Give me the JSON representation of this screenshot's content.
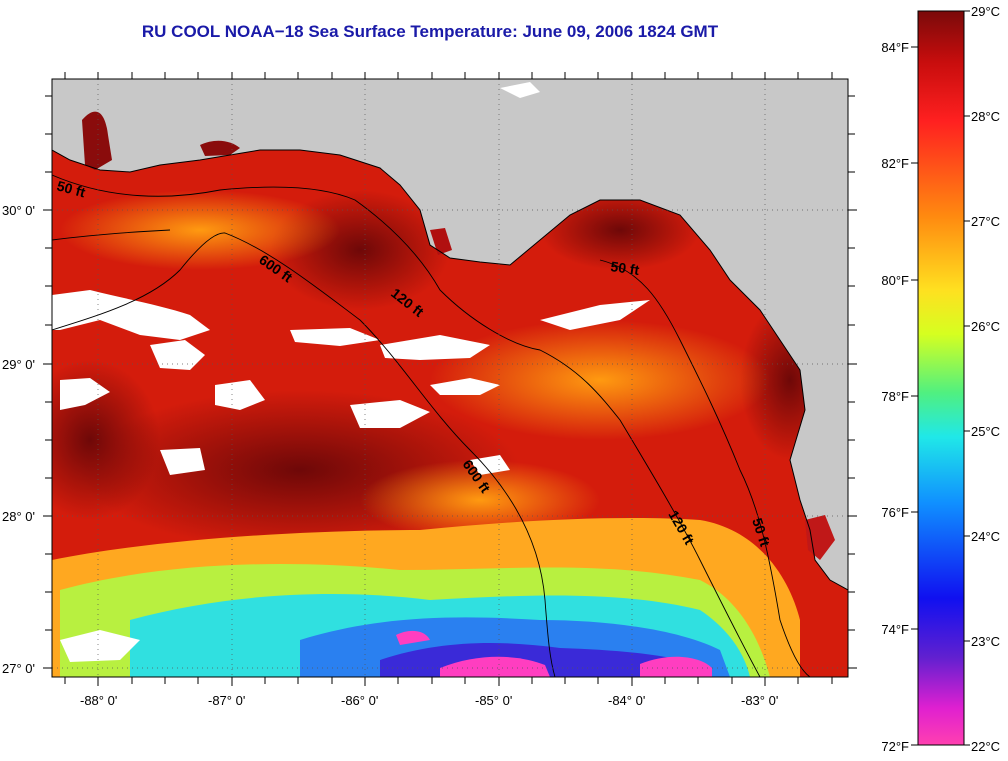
{
  "title": "RU COOL  NOAA−18  Sea Surface Temperature:  June 09, 2006 1824 GMT",
  "map": {
    "lon_labels": [
      "-88° 0'",
      "-87° 0'",
      "-86° 0'",
      "-85° 0'",
      "-84° 0'",
      "-83° 0'"
    ],
    "lat_labels": [
      "30° 0'",
      "29° 0'",
      "28° 0'",
      "27° 0'"
    ],
    "contour_labels": [
      "50 ft",
      "600 ft",
      "120 ft",
      "50 ft",
      "600 ft",
      "120 ft",
      "50 ft"
    ],
    "colors": {
      "land": "#c8c8c8",
      "clouds": "#ffffff",
      "warm": "#d21a0a",
      "hot": "#7a0a0a",
      "cool": "#30e0e0",
      "cold": "#ff40c0"
    }
  },
  "colorbar": {
    "fahrenheit_labels": [
      "84°F",
      "82°F",
      "80°F",
      "78°F",
      "76°F",
      "74°F",
      "72°F"
    ],
    "celsius_labels": [
      "29°C",
      "28°C",
      "27°C",
      "26°C",
      "25°C",
      "24°C",
      "23°C",
      "22°C"
    ]
  }
}
